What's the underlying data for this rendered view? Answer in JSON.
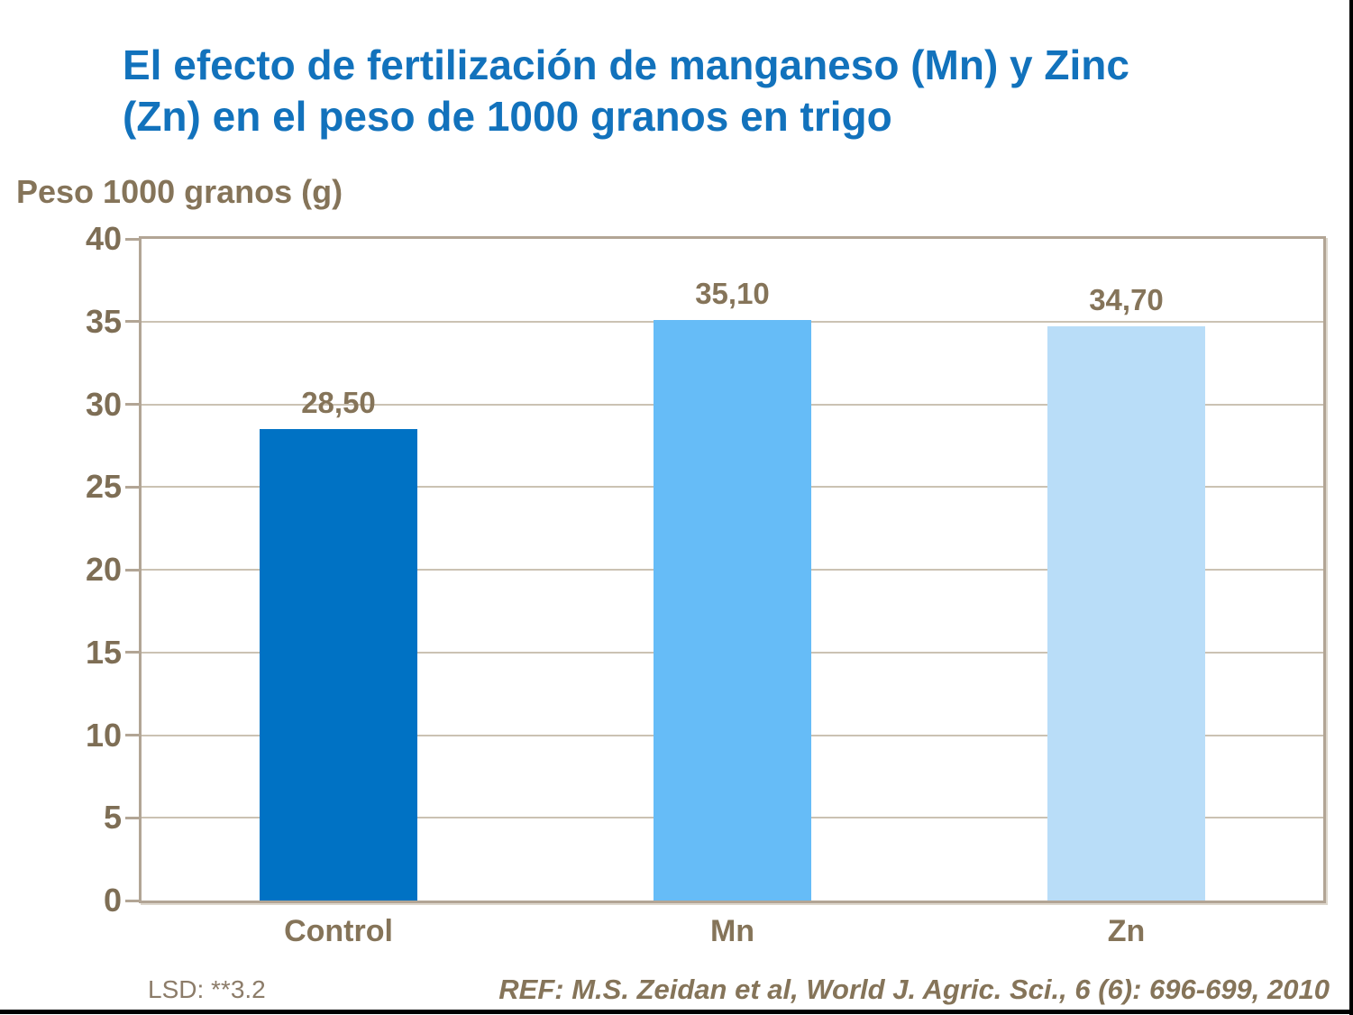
{
  "title_lines": [
    "El efecto de fertilización de manganeso (Mn) y Zinc",
    "(Zn) en el peso de 1000 granos en trigo"
  ],
  "y_axis_title": "Peso 1000 granos (g)",
  "footnotes": {
    "lsd": "LSD: **3.2",
    "reference": "REF: M.S. Zeidan et al, World J. Agric. Sci., 6 (6): 696-699, 2010"
  },
  "colors": {
    "title": "#1272BC",
    "text_brown": "#857459",
    "footnote_brown": "#8C7C69",
    "plot_border": "#B2A595",
    "gridline": "#CBC2B3",
    "edge_lines": "#000000",
    "bars": [
      "#0072C4",
      "#66BCF7",
      "#B9DDF8"
    ]
  },
  "chart_data": {
    "type": "bar",
    "title": "El efecto de fertilización de manganeso (Mn) y Zinc (Zn) en el peso de 1000 granos en trigo",
    "ylabel": "Peso 1000 granos (g)",
    "xlabel": "",
    "categories": [
      "Control",
      "Mn",
      "Zn"
    ],
    "values": [
      28.5,
      35.1,
      34.7
    ],
    "value_labels": [
      "28,50",
      "35,10",
      "34,70"
    ],
    "bar_colors": [
      "#0072C4",
      "#66BCF7",
      "#B9DDF8"
    ],
    "ylim": [
      0,
      40
    ],
    "yticks": [
      0,
      5,
      10,
      15,
      20,
      25,
      30,
      35,
      40
    ],
    "grid": true,
    "legend": "none",
    "annotations": [
      "LSD: **3.2",
      "REF: M.S. Zeidan et al, World J. Agric. Sci., 6 (6): 696-699, 2010"
    ]
  }
}
